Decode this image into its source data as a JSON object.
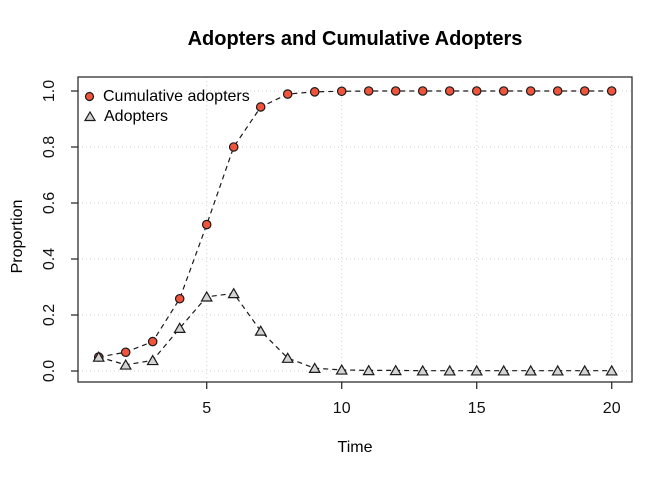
{
  "chart_data": {
    "type": "line",
    "title": "Adopters and Cumulative Adopters",
    "xlabel": "Time",
    "ylabel": "Proportion",
    "x": [
      1,
      2,
      3,
      4,
      5,
      6,
      7,
      8,
      9,
      10,
      11,
      12,
      13,
      14,
      15,
      16,
      17,
      18,
      19,
      20
    ],
    "series": [
      {
        "name": "Cumulative adopters",
        "marker": "circle",
        "line_style": "dashed",
        "line_color": "#1a1a1a",
        "marker_fill": "#f0543c",
        "marker_stroke": "#1a1a1a",
        "values": [
          0.05,
          0.067,
          0.105,
          0.258,
          0.523,
          0.8,
          0.943,
          0.989,
          0.997,
          0.999,
          1.0,
          1.0,
          1.0,
          1.0,
          1.0,
          1.0,
          1.0,
          1.0,
          1.0,
          1.0
        ]
      },
      {
        "name": "Adopters",
        "marker": "triangle",
        "line_style": "dashed",
        "line_color": "#1a1a1a",
        "marker_fill": "#d3d3d3",
        "marker_stroke": "#1a1a1a",
        "values": [
          0.05,
          0.022,
          0.038,
          0.153,
          0.265,
          0.277,
          0.143,
          0.046,
          0.01,
          0.004,
          0.002,
          0.002,
          0.001,
          0.001,
          0.001,
          0.001,
          0.001,
          0.001,
          0.001,
          0.001
        ]
      }
    ],
    "xlim": [
      1,
      20
    ],
    "ylim": [
      0,
      1
    ],
    "xticks": [
      5,
      10,
      15,
      20
    ],
    "yticks": [
      0.0,
      0.2,
      0.4,
      0.6,
      0.8,
      1.0
    ],
    "grid": "dotted",
    "grid_color": "#d4d4d4",
    "box_color": "#2f2f2f",
    "legend_position": "top-left",
    "background": "#ffffff"
  }
}
